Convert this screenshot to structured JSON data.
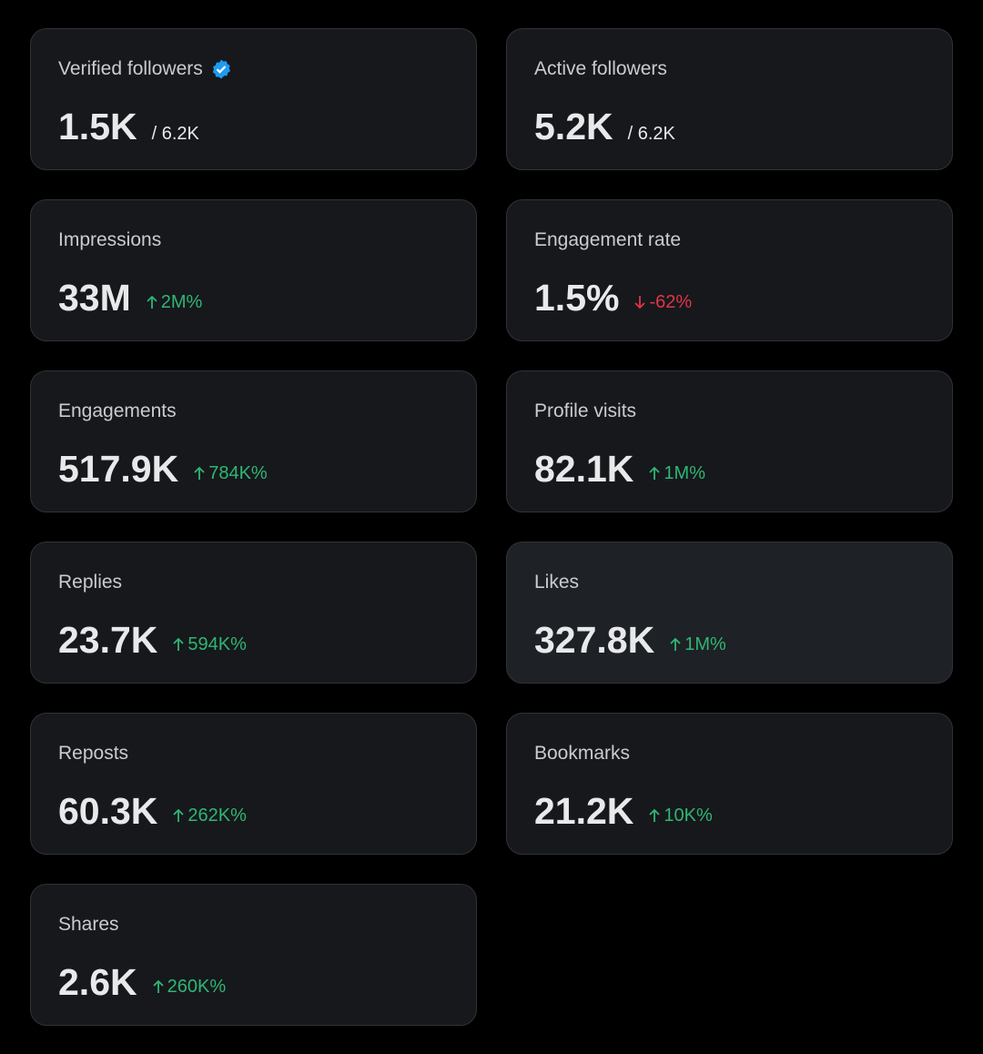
{
  "cards": [
    {
      "label": "Verified followers",
      "verified": true,
      "value": "1.5K",
      "total": "/ 6.2K"
    },
    {
      "label": "Active followers",
      "value": "5.2K",
      "total": "/ 6.2K"
    },
    {
      "label": "Impressions",
      "value": "33M",
      "change": "2M%",
      "direction": "up"
    },
    {
      "label": "Engagement rate",
      "value": "1.5%",
      "change": "-62%",
      "direction": "down"
    },
    {
      "label": "Engagements",
      "value": "517.9K",
      "change": "784K%",
      "direction": "up"
    },
    {
      "label": "Profile visits",
      "value": "82.1K",
      "change": "1M%",
      "direction": "up"
    },
    {
      "label": "Replies",
      "value": "23.7K",
      "change": "594K%",
      "direction": "up"
    },
    {
      "label": "Likes",
      "value": "327.8K",
      "change": "1M%",
      "direction": "up",
      "highlighted": true
    },
    {
      "label": "Reposts",
      "value": "60.3K",
      "change": "262K%",
      "direction": "up"
    },
    {
      "label": "Bookmarks",
      "value": "21.2K",
      "change": "10K%",
      "direction": "up"
    },
    {
      "label": "Shares",
      "value": "2.6K",
      "change": "260K%",
      "direction": "up"
    }
  ]
}
